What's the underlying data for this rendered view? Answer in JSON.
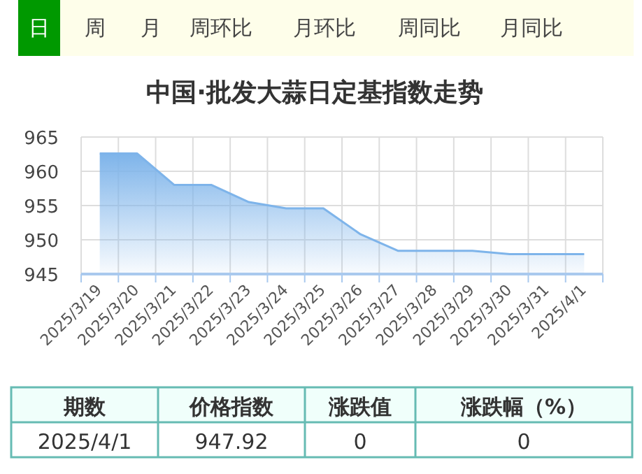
{
  "chart_data": [
    {
      "type": "area",
      "title": "中国·批发大蒜日定基指数走势",
      "annotations": [
        "日",
        "周",
        "月",
        "周环比",
        "月环比",
        "周同比",
        "月同比"
      ],
      "categories": [
        "2025/3/19",
        "2025/3/20",
        "2025/3/21",
        "2025/3/22",
        "2025/3/23",
        "2025/3/24",
        "2025/3/25",
        "2025/3/26",
        "2025/3/27",
        "2025/3/28",
        "2025/3/29",
        "2025/3/30",
        "2025/3/31",
        "2025/4/1"
      ],
      "values": [
        962.6,
        962.6,
        958.0,
        958.0,
        955.5,
        954.6,
        954.6,
        950.8,
        948.4,
        948.4,
        948.4,
        947.9,
        947.9,
        947.92
      ],
      "color": "#7eb4ea",
      "ylim": [
        945,
        965
      ],
      "yticks": [
        945,
        950,
        955,
        960,
        965
      ],
      "grid": true
    },
    {
      "type": "other",
      "annotations": [
        "期数",
        "价格指数",
        "涨跌值",
        "涨跌幅（%）",
        "2025/4/1",
        "947.92",
        "0",
        "0"
      ]
    }
  ]
}
